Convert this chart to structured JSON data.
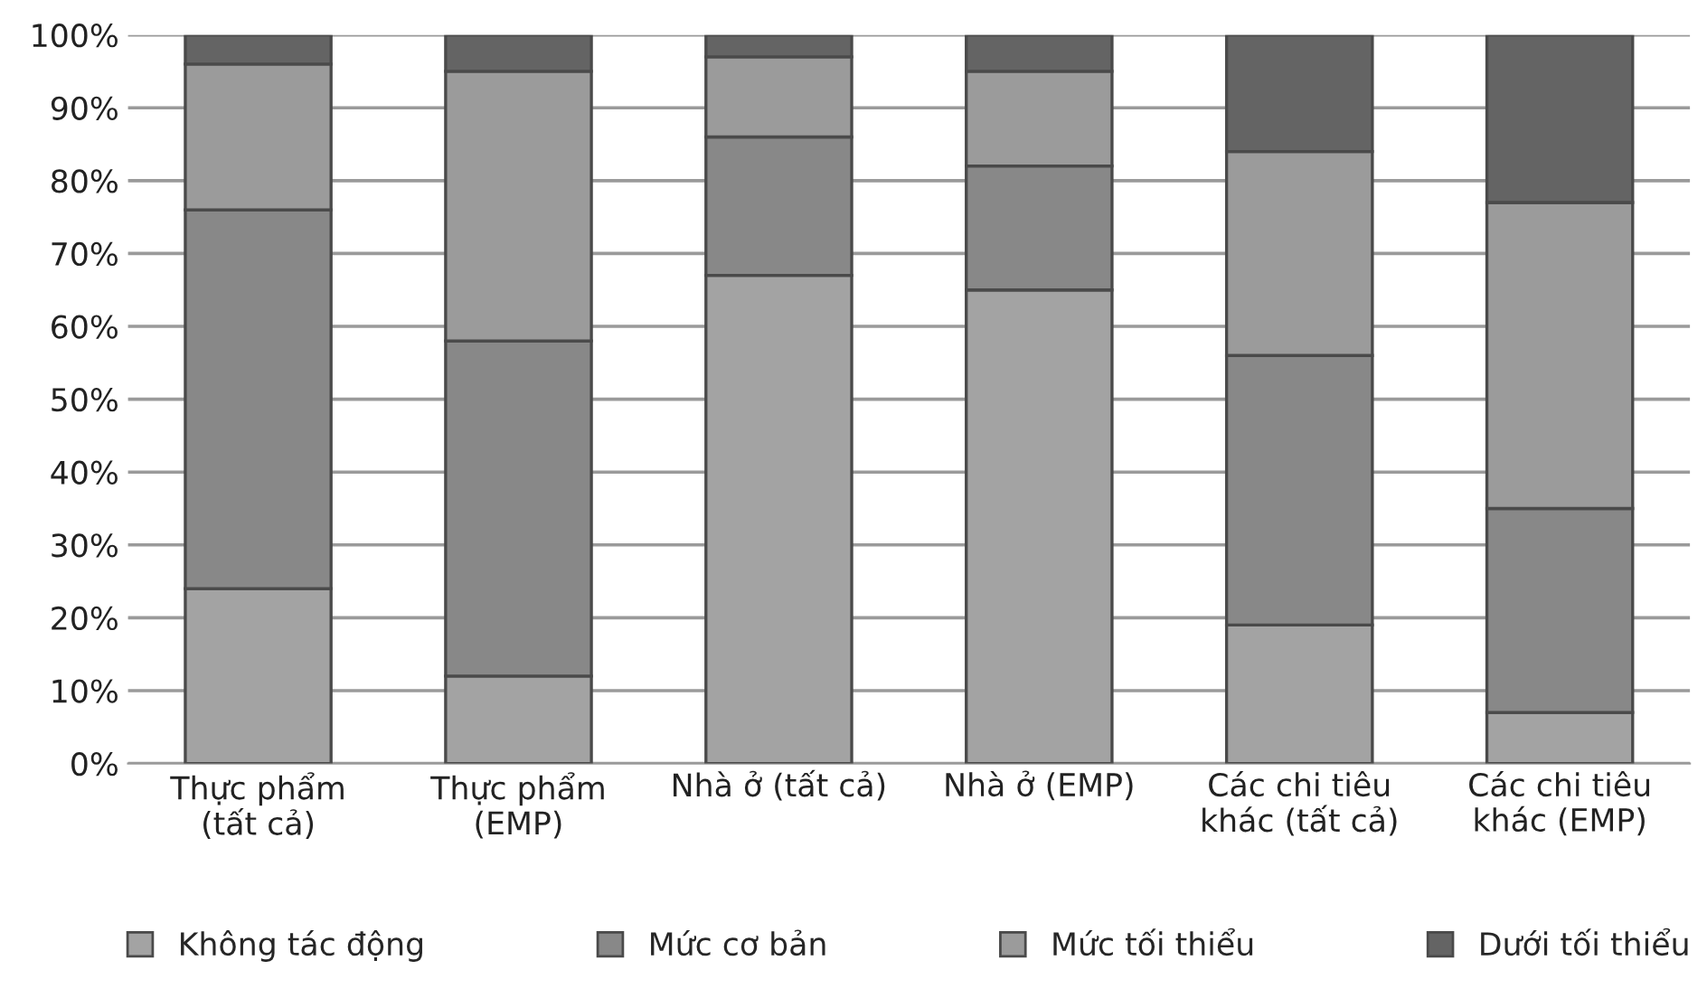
{
  "chart_data": {
    "type": "bar",
    "stacked": true,
    "categories": [
      "Thực phẩm\n(tất cả)",
      "Thực phẩm\n(EMP)",
      "Nhà ở (tất cả)",
      "Nhà ở (EMP)",
      "Các chi tiêu\nkhác (tất cả)",
      "Các chi tiêu\nkhác (EMP)"
    ],
    "series": [
      {
        "name": "Không tác động",
        "color": "#a3a3a3",
        "values": [
          24,
          12,
          67,
          65,
          19,
          7
        ]
      },
      {
        "name": "Mức cơ bản",
        "color": "#888888",
        "values": [
          52,
          46,
          19,
          17,
          37,
          28
        ]
      },
      {
        "name": "Mức tối thiểu",
        "color": "#9b9b9b",
        "values": [
          20,
          37,
          11,
          13,
          28,
          42
        ]
      },
      {
        "name": "Dưới tối thiểu",
        "color": "#646464",
        "values": [
          4,
          5,
          3,
          5,
          16,
          23
        ]
      }
    ],
    "ylim": [
      0,
      100
    ],
    "yticks": [
      {
        "value": 0,
        "label": "0%"
      },
      {
        "value": 10,
        "label": "10%"
      },
      {
        "value": 20,
        "label": "20%"
      },
      {
        "value": 30,
        "label": "30%"
      },
      {
        "value": 40,
        "label": "40%"
      },
      {
        "value": 50,
        "label": "50%"
      },
      {
        "value": 60,
        "label": "60%"
      },
      {
        "value": 70,
        "label": "70%"
      },
      {
        "value": 80,
        "label": "80%"
      },
      {
        "value": 90,
        "label": "90%"
      },
      {
        "value": 100,
        "label": "100%"
      }
    ],
    "grid": "y",
    "legend": "bottom"
  }
}
